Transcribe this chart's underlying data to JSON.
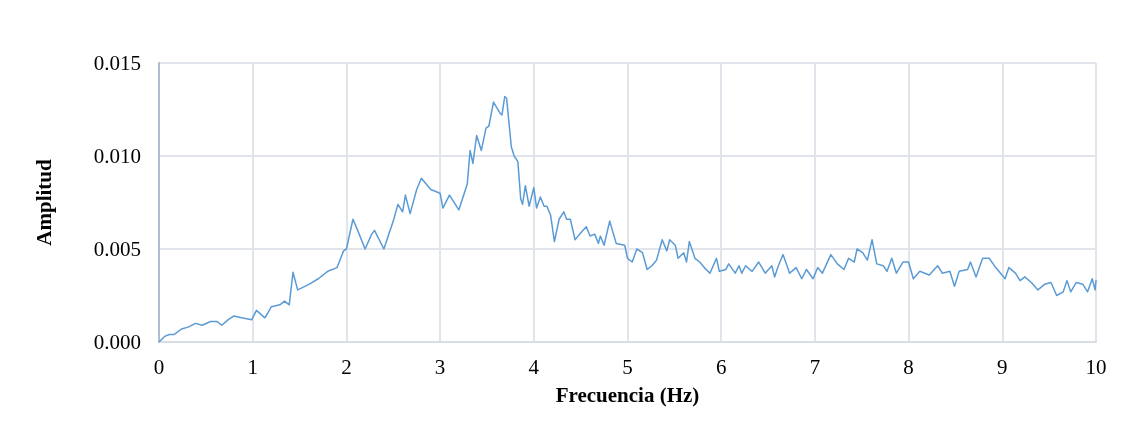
{
  "chart_data": {
    "type": "line",
    "xlabel": "Frecuencia (Hz)",
    "ylabel": "Amplitud",
    "xlim": [
      0,
      10
    ],
    "xticks": [
      0,
      1,
      2,
      3,
      4,
      5,
      6,
      7,
      8,
      9,
      10
    ],
    "ylim": [
      0,
      0.015
    ],
    "yticks": [
      {
        "value": 0,
        "label": "0.000"
      },
      {
        "value": 0.005,
        "label": "0.005"
      },
      {
        "value": 0.01,
        "label": "0.010"
      },
      {
        "value": 0.015,
        "label": "0.015"
      }
    ],
    "grid": true,
    "marker": "none",
    "line_style": "solid",
    "series": [
      {
        "color": "#5b9bd5",
        "x": [
          0,
          0.06,
          0.11,
          0.16,
          0.24,
          0.31,
          0.39,
          0.46,
          0.55,
          0.62,
          0.67,
          0.74,
          0.8,
          0.88,
          0.99,
          1.04,
          1.13,
          1.2,
          1.29,
          1.34,
          1.39,
          1.43,
          1.48,
          1.6,
          1.7,
          1.8,
          1.9,
          1.97,
          2.0,
          2.07,
          2.12,
          2.2,
          2.27,
          2.3,
          2.4,
          2.5,
          2.55,
          2.6,
          2.63,
          2.68,
          2.75,
          2.8,
          2.9,
          3.0,
          3.03,
          3.1,
          3.2,
          3.29,
          3.32,
          3.35,
          3.39,
          3.44,
          3.49,
          3.52,
          3.57,
          3.64,
          3.66,
          3.69,
          3.71,
          3.76,
          3.79,
          3.83,
          3.86,
          3.88,
          3.91,
          3.95,
          4.0,
          4.03,
          4.07,
          4.11,
          4.14,
          4.18,
          4.22,
          4.27,
          4.32,
          4.35,
          4.39,
          4.44,
          4.49,
          4.56,
          4.6,
          4.65,
          4.69,
          4.71,
          4.75,
          4.81,
          4.88,
          4.97,
          5.0,
          5.05,
          5.1,
          5.16,
          5.21,
          5.26,
          5.31,
          5.37,
          5.42,
          5.45,
          5.51,
          5.54,
          5.6,
          5.63,
          5.66,
          5.72,
          5.77,
          5.82,
          5.88,
          5.95,
          5.98,
          6.05,
          6.08,
          6.15,
          6.19,
          6.22,
          6.26,
          6.33,
          6.4,
          6.47,
          6.54,
          6.57,
          6.61,
          6.66,
          6.73,
          6.8,
          6.86,
          6.91,
          6.98,
          7.03,
          7.08,
          7.17,
          7.24,
          7.31,
          7.36,
          7.42,
          7.45,
          7.51,
          7.56,
          7.61,
          7.66,
          7.73,
          7.77,
          7.82,
          7.87,
          7.94,
          8.0,
          8.05,
          8.12,
          8.22,
          8.31,
          8.36,
          8.44,
          8.49,
          8.54,
          8.63,
          8.66,
          8.72,
          8.79,
          8.86,
          8.93,
          9.03,
          9.07,
          9.14,
          9.19,
          9.24,
          9.31,
          9.38,
          9.45,
          9.52,
          9.58,
          9.65,
          9.69,
          9.73,
          9.79,
          9.86,
          9.91,
          9.96,
          9.99,
          10.0
        ],
        "values": [
          0,
          0.0003,
          0.0004,
          0.0004,
          0.0007,
          0.0008,
          0.001,
          0.0009,
          0.0011,
          0.0011,
          0.0009,
          0.0012,
          0.0014,
          0.0013,
          0.0012,
          0.0017,
          0.0013,
          0.0019,
          0.002,
          0.0022,
          0.002,
          0.00375,
          0.0028,
          0.0031,
          0.0034,
          0.0038,
          0.004,
          0.0049,
          0.005,
          0.0066,
          0.006,
          0.005,
          0.0058,
          0.006,
          0.005,
          0.0065,
          0.0074,
          0.007,
          0.0079,
          0.0069,
          0.0082,
          0.0088,
          0.0082,
          0.008,
          0.0072,
          0.0079,
          0.0071,
          0.0085,
          0.0103,
          0.0096,
          0.0111,
          0.0103,
          0.0115,
          0.0116,
          0.0129,
          0.0123,
          0.0122,
          0.0132,
          0.0131,
          0.0105,
          0.01,
          0.0097,
          0.0077,
          0.0074,
          0.0084,
          0.0073,
          0.0083,
          0.0072,
          0.0078,
          0.0073,
          0.0073,
          0.0068,
          0.0054,
          0.0066,
          0.007,
          0.0066,
          0.0066,
          0.0055,
          0.0058,
          0.0062,
          0.0057,
          0.0058,
          0.0053,
          0.0057,
          0.0052,
          0.0065,
          0.0053,
          0.0052,
          0.0045,
          0.0043,
          0.005,
          0.0048,
          0.0039,
          0.0041,
          0.0044,
          0.0055,
          0.0049,
          0.0055,
          0.0052,
          0.0045,
          0.0048,
          0.0043,
          0.0054,
          0.0045,
          0.0043,
          0.004,
          0.0037,
          0.0045,
          0.0038,
          0.0039,
          0.0042,
          0.0037,
          0.0041,
          0.0037,
          0.0041,
          0.0038,
          0.0043,
          0.0037,
          0.0041,
          0.0035,
          0.0041,
          0.0047,
          0.0037,
          0.004,
          0.0034,
          0.0039,
          0.0034,
          0.004,
          0.0037,
          0.0047,
          0.0042,
          0.0039,
          0.0045,
          0.0043,
          0.005,
          0.0048,
          0.0044,
          0.0055,
          0.0042,
          0.0041,
          0.0038,
          0.0045,
          0.0037,
          0.0043,
          0.0043,
          0.0034,
          0.0038,
          0.0036,
          0.0041,
          0.0037,
          0.0038,
          0.003,
          0.0038,
          0.0039,
          0.0043,
          0.0035,
          0.0045,
          0.0045,
          0.004,
          0.0034,
          0.004,
          0.0037,
          0.0033,
          0.0035,
          0.0032,
          0.0028,
          0.0031,
          0.0032,
          0.0025,
          0.0027,
          0.0033,
          0.0027,
          0.0032,
          0.0031,
          0.0027,
          0.0034,
          0.0028,
          0.0033
        ]
      }
    ]
  }
}
